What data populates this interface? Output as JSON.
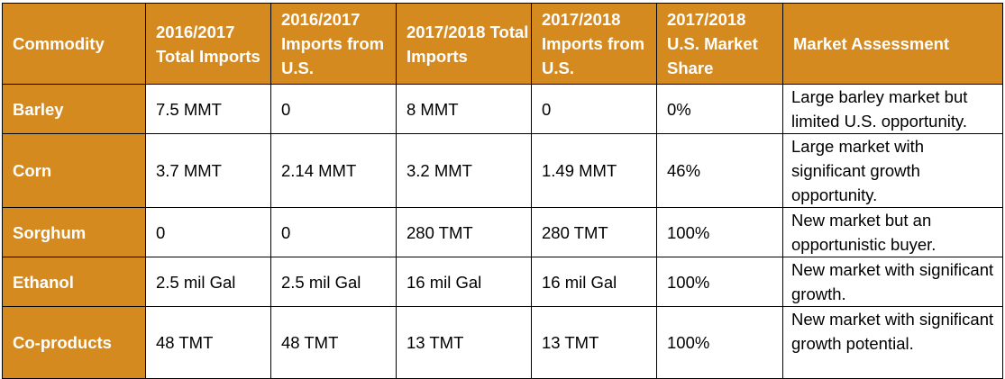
{
  "colors": {
    "header_fill": "#d58a1f",
    "header_text": "#ffffff",
    "grid_line": "#000000"
  },
  "table": {
    "headers": [
      "Commodity",
      "2016/2017 Total Imports",
      "2016/2017 Imports from U.S.",
      "2017/2018 Total Imports",
      "2017/2018 Imports from U.S.",
      "2017/2018 U.S. Market Share",
      "Market Assessment"
    ],
    "rows": [
      {
        "commodity": "Barley",
        "total_16_17": "7.5 MMT",
        "us_16_17": "0",
        "total_17_18": "8 MMT",
        "us_17_18": "0",
        "share_17_18": "0%",
        "assessment": "Large barley market but limited U.S. opportunity."
      },
      {
        "commodity": "Corn",
        "total_16_17": "3.7 MMT",
        "us_16_17": "2.14 MMT",
        "total_17_18": "3.2 MMT",
        "us_17_18": "1.49 MMT",
        "share_17_18": "46%",
        "assessment": "Large market with significant growth opportunity."
      },
      {
        "commodity": "Sorghum",
        "total_16_17": "0",
        "us_16_17": "0",
        "total_17_18": "280 TMT",
        "us_17_18": "280 TMT",
        "share_17_18": "100%",
        "assessment": "New market but an opportunistic buyer."
      },
      {
        "commodity": "Ethanol",
        "total_16_17": "2.5 mil Gal",
        "us_16_17": "2.5 mil Gal",
        "total_17_18": "16 mil Gal",
        "us_17_18": "16 mil Gal",
        "share_17_18": "100%",
        "assessment": "New market with significant growth."
      },
      {
        "commodity": "Co-products",
        "total_16_17": "48 TMT",
        "us_16_17": "48 TMT",
        "total_17_18": "13 TMT",
        "us_17_18": "13 TMT",
        "share_17_18": "100%",
        "assessment": "New market with significant growth potential."
      }
    ]
  }
}
